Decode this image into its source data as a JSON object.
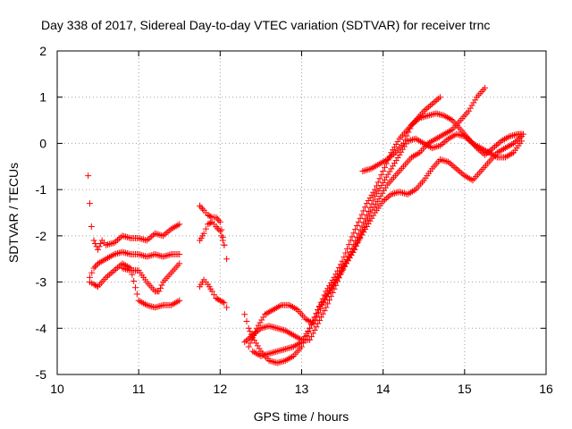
{
  "chart_data": {
    "type": "scatter",
    "title": "Day 338 of 2017, Sidereal Day-to-day VTEC variation (SDTVAR) for receiver trnc",
    "xlabel": "GPS time / hours",
    "ylabel": "SDTVAR / TECUs",
    "xlim": [
      10,
      16
    ],
    "ylim": [
      -5,
      2
    ],
    "xticks": [
      "10",
      "11",
      "12",
      "13",
      "14",
      "15",
      "16"
    ],
    "yticks": [
      "-5",
      "-4",
      "-3",
      "-2",
      "-1",
      "0",
      "1",
      "2"
    ],
    "grid": true,
    "marker": "+",
    "color": "#ff0000",
    "legend": "none",
    "series": [
      {
        "x": [
          10.38,
          10.4,
          10.42,
          10.45,
          10.5,
          10.55,
          10.6,
          10.7,
          10.8,
          10.9,
          11.0,
          11.1,
          11.2,
          11.3,
          11.4,
          11.5
        ],
        "y": [
          -0.7,
          -1.3,
          -1.8,
          -2.1,
          -2.3,
          -2.1,
          -2.2,
          -2.15,
          -2.0,
          -2.05,
          -2.05,
          -2.1,
          -1.95,
          -2.0,
          -1.85,
          -1.75
        ]
      },
      {
        "x": [
          10.4,
          10.45,
          10.5,
          10.6,
          10.7,
          10.8,
          10.9,
          11.0,
          11.1,
          11.2,
          11.3,
          11.4,
          11.5
        ],
        "y": [
          -2.9,
          -2.7,
          -2.6,
          -2.5,
          -2.4,
          -2.35,
          -2.4,
          -2.4,
          -2.45,
          -2.4,
          -2.45,
          -2.4,
          -2.4
        ]
      },
      {
        "x": [
          10.4,
          10.45,
          10.5,
          10.6,
          10.7,
          10.8,
          10.9,
          11.0,
          11.1,
          11.2,
          11.3,
          11.4,
          11.5
        ],
        "y": [
          -3.0,
          -3.05,
          -3.1,
          -2.9,
          -2.75,
          -2.6,
          -2.7,
          -3.4,
          -3.5,
          -3.55,
          -3.5,
          -3.5,
          -3.4
        ]
      },
      {
        "x": [
          10.8,
          10.9,
          11.0,
          11.1,
          11.2,
          11.25,
          11.3,
          11.4,
          11.5
        ],
        "y": [
          -2.7,
          -2.75,
          -2.75,
          -3.0,
          -3.2,
          -3.2,
          -3.0,
          -2.8,
          -2.6
        ]
      },
      {
        "x": [
          11.75,
          11.8,
          11.85,
          11.9,
          11.95,
          12.0,
          12.05,
          12.08
        ],
        "y": [
          -1.35,
          -1.45,
          -1.55,
          -1.6,
          -1.6,
          -1.7,
          -2.2,
          -2.5
        ]
      },
      {
        "x": [
          11.75,
          11.8,
          11.85,
          11.9,
          11.95,
          12.0,
          12.05
        ],
        "y": [
          -2.1,
          -1.95,
          -1.75,
          -1.7,
          -1.8,
          -1.9,
          -2.2
        ]
      },
      {
        "x": [
          11.75,
          11.8,
          11.85,
          11.9,
          11.95,
          12.0,
          12.05,
          12.08
        ],
        "y": [
          -3.1,
          -2.95,
          -3.05,
          -3.2,
          -3.35,
          -3.4,
          -3.45,
          -3.55
        ]
      },
      {
        "x": [
          12.3,
          12.35,
          12.4,
          12.5,
          12.6,
          12.7,
          12.8,
          12.9,
          13.0,
          13.1,
          13.2,
          13.3,
          13.4,
          13.5,
          13.6,
          13.7,
          13.8,
          13.9,
          14.0,
          14.1,
          14.2,
          14.3,
          14.4,
          14.5,
          14.6,
          14.7
        ],
        "y": [
          -3.7,
          -4.0,
          -4.2,
          -4.5,
          -4.7,
          -4.75,
          -4.7,
          -4.6,
          -4.4,
          -4.0,
          -3.6,
          -3.2,
          -2.9,
          -2.55,
          -2.1,
          -1.7,
          -1.3,
          -1.0,
          -0.6,
          -0.2,
          0.1,
          0.3,
          0.5,
          0.7,
          0.85,
          1.0
        ]
      },
      {
        "x": [
          12.35,
          12.45,
          12.55,
          12.65,
          12.75,
          12.85,
          12.95,
          13.05,
          13.15,
          13.25,
          13.35,
          13.45,
          13.55,
          13.65,
          13.75,
          13.85,
          13.95,
          14.05,
          14.15,
          14.25,
          14.35,
          14.45,
          14.55,
          14.65,
          14.75,
          14.85,
          14.95,
          15.05,
          15.15,
          15.25
        ],
        "y": [
          -4.4,
          -4.0,
          -3.7,
          -3.6,
          -3.5,
          -3.5,
          -3.6,
          -3.8,
          -3.9,
          -3.5,
          -3.2,
          -2.9,
          -2.6,
          -2.3,
          -1.9,
          -1.5,
          -1.2,
          -0.9,
          -0.7,
          -0.5,
          -0.3,
          -0.2,
          0.0,
          0.1,
          0.2,
          0.3,
          0.5,
          0.7,
          1.0,
          1.2
        ]
      },
      {
        "x": [
          12.3,
          12.4,
          12.5,
          12.6,
          12.7,
          12.8,
          12.9,
          13.0,
          13.1,
          13.2,
          13.3,
          13.4,
          13.5,
          13.6,
          13.7,
          13.8,
          13.9,
          14.0,
          14.1,
          14.2,
          14.3,
          14.4,
          14.5,
          14.6,
          14.7,
          14.8,
          14.9,
          15.0,
          15.1,
          15.2,
          15.3,
          15.4,
          15.5,
          15.6,
          15.7
        ],
        "y": [
          -4.3,
          -4.15,
          -4.0,
          -3.95,
          -4.0,
          -4.05,
          -4.15,
          -4.25,
          -4.25,
          -3.9,
          -3.55,
          -3.15,
          -2.75,
          -2.35,
          -1.95,
          -1.55,
          -1.15,
          -0.85,
          -0.55,
          -0.25,
          0.05,
          0.1,
          0.0,
          -0.1,
          -0.05,
          0.1,
          0.2,
          0.15,
          0.0,
          -0.1,
          -0.2,
          -0.3,
          -0.3,
          -0.2,
          0.05
        ]
      },
      {
        "x": [
          12.4,
          12.5,
          12.6,
          12.7,
          12.8,
          12.9,
          13.0,
          13.1,
          13.2,
          13.3,
          13.4,
          13.5,
          13.6,
          13.7,
          13.8,
          13.9,
          14.0,
          14.1,
          14.2,
          14.3,
          14.4,
          14.5,
          14.6,
          14.7,
          14.8,
          14.9,
          15.0,
          15.1,
          15.2,
          15.3,
          15.4,
          15.5,
          15.6,
          15.7
        ],
        "y": [
          -4.5,
          -4.6,
          -4.55,
          -4.5,
          -4.45,
          -4.4,
          -4.3,
          -4.0,
          -3.6,
          -3.3,
          -3.0,
          -2.7,
          -2.4,
          -2.1,
          -1.8,
          -1.5,
          -1.25,
          -1.1,
          -1.05,
          -1.1,
          -1.0,
          -0.8,
          -0.55,
          -0.35,
          -0.4,
          -0.55,
          -0.7,
          -0.8,
          -0.6,
          -0.4,
          -0.2,
          -0.1,
          0.0,
          0.15
        ]
      },
      {
        "x": [
          13.75,
          13.85,
          13.95,
          14.05,
          14.15,
          14.25,
          14.35,
          14.45,
          14.55,
          14.65,
          14.75,
          14.85,
          14.95,
          15.05,
          15.15,
          15.25,
          15.35,
          15.45,
          15.55,
          15.65,
          15.72
        ],
        "y": [
          -0.6,
          -0.55,
          -0.45,
          -0.35,
          -0.2,
          0.0,
          0.4,
          0.55,
          0.6,
          0.65,
          0.6,
          0.5,
          0.3,
          0.1,
          -0.1,
          -0.25,
          -0.1,
          0.05,
          0.15,
          0.2,
          0.2
        ]
      }
    ]
  }
}
